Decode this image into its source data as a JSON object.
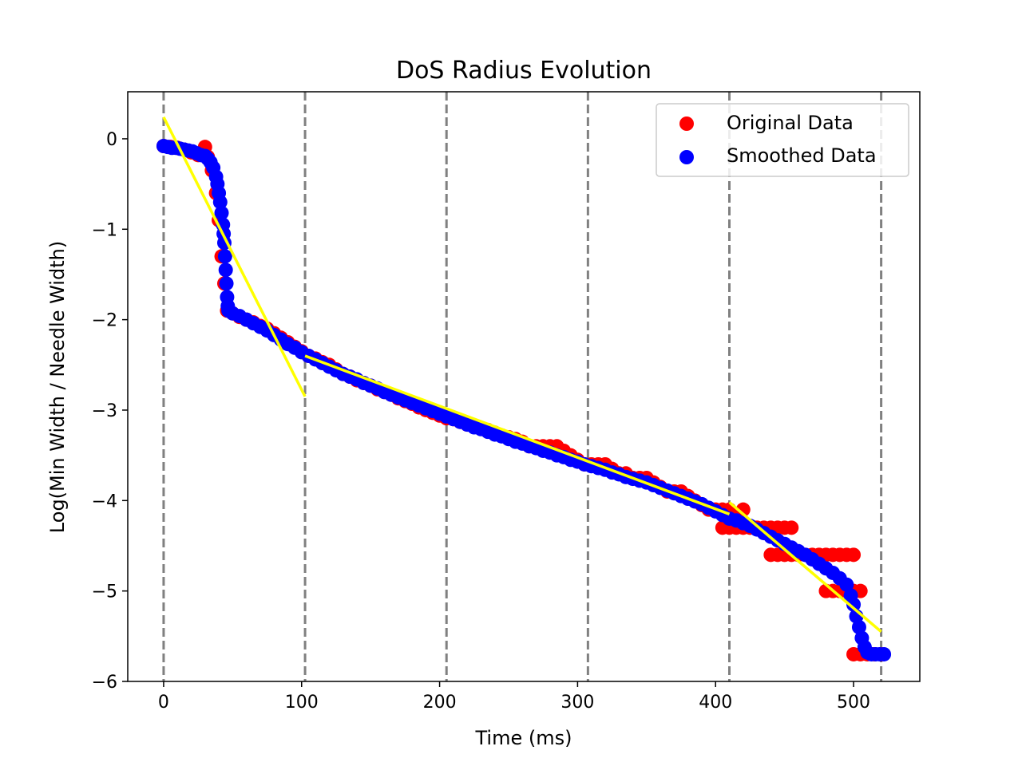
{
  "chart_data": {
    "type": "scatter",
    "title": "DoS Radius Evolution",
    "xlabel": "Time (ms)",
    "ylabel": "Log(Min Width / Needle Width)",
    "xlim": [
      -26,
      548
    ],
    "ylim": [
      -6,
      0.52
    ],
    "xticks": [
      0,
      100,
      200,
      300,
      400,
      500
    ],
    "yticks": [
      0,
      -1,
      -2,
      -3,
      -4,
      -5,
      -6
    ],
    "xtick_labels": [
      "0",
      "100",
      "200",
      "300",
      "400",
      "500"
    ],
    "ytick_labels": [
      "0",
      "−1",
      "−2",
      "−3",
      "−4",
      "−5",
      "−6"
    ],
    "grid": false,
    "legend_position": "top-right",
    "vlines": [
      0,
      102.5,
      205,
      307.5,
      410,
      520
    ],
    "vline_color": "#808080",
    "series": [
      {
        "name": "Original Data",
        "color": "#ff0000",
        "points": [
          [
            0,
            -0.08
          ],
          [
            5,
            -0.09
          ],
          [
            10,
            -0.1
          ],
          [
            15,
            -0.12
          ],
          [
            20,
            -0.15
          ],
          [
            25,
            -0.18
          ],
          [
            30,
            -0.09
          ],
          [
            32,
            -0.2
          ],
          [
            35,
            -0.35
          ],
          [
            38,
            -0.6
          ],
          [
            40,
            -0.9
          ],
          [
            42,
            -1.3
          ],
          [
            44,
            -1.6
          ],
          [
            46,
            -1.9
          ],
          [
            50,
            -1.93
          ],
          [
            55,
            -1.97
          ],
          [
            60,
            -2.0
          ],
          [
            65,
            -2.03
          ],
          [
            70,
            -2.07
          ],
          [
            75,
            -2.1
          ],
          [
            80,
            -2.15
          ],
          [
            85,
            -2.2
          ],
          [
            90,
            -2.25
          ],
          [
            95,
            -2.3
          ],
          [
            100,
            -2.35
          ],
          [
            105,
            -2.4
          ],
          [
            110,
            -2.43
          ],
          [
            115,
            -2.47
          ],
          [
            120,
            -2.5
          ],
          [
            125,
            -2.55
          ],
          [
            130,
            -2.6
          ],
          [
            135,
            -2.63
          ],
          [
            140,
            -2.67
          ],
          [
            145,
            -2.7
          ],
          [
            150,
            -2.73
          ],
          [
            155,
            -2.77
          ],
          [
            160,
            -2.8
          ],
          [
            165,
            -2.83
          ],
          [
            170,
            -2.87
          ],
          [
            175,
            -2.9
          ],
          [
            180,
            -2.93
          ],
          [
            185,
            -2.97
          ],
          [
            190,
            -3.0
          ],
          [
            195,
            -3.03
          ],
          [
            200,
            -3.06
          ],
          [
            205,
            -3.09
          ],
          [
            210,
            -3.1
          ],
          [
            215,
            -3.13
          ],
          [
            220,
            -3.16
          ],
          [
            225,
            -3.18
          ],
          [
            230,
            -3.2
          ],
          [
            235,
            -3.22
          ],
          [
            240,
            -3.25
          ],
          [
            245,
            -3.28
          ],
          [
            250,
            -3.3
          ],
          [
            255,
            -3.32
          ],
          [
            260,
            -3.35
          ],
          [
            265,
            -3.4
          ],
          [
            270,
            -3.4
          ],
          [
            275,
            -3.4
          ],
          [
            280,
            -3.4
          ],
          [
            285,
            -3.4
          ],
          [
            290,
            -3.45
          ],
          [
            295,
            -3.5
          ],
          [
            300,
            -3.55
          ],
          [
            305,
            -3.6
          ],
          [
            310,
            -3.6
          ],
          [
            315,
            -3.6
          ],
          [
            320,
            -3.6
          ],
          [
            325,
            -3.65
          ],
          [
            330,
            -3.7
          ],
          [
            335,
            -3.7
          ],
          [
            340,
            -3.75
          ],
          [
            345,
            -3.75
          ],
          [
            350,
            -3.75
          ],
          [
            355,
            -3.8
          ],
          [
            360,
            -3.85
          ],
          [
            365,
            -3.9
          ],
          [
            370,
            -3.9
          ],
          [
            375,
            -3.9
          ],
          [
            380,
            -3.95
          ],
          [
            385,
            -4.0
          ],
          [
            390,
            -4.05
          ],
          [
            395,
            -4.1
          ],
          [
            400,
            -4.1
          ],
          [
            405,
            -4.1
          ],
          [
            410,
            -4.1
          ],
          [
            415,
            -4.15
          ],
          [
            420,
            -4.1
          ],
          [
            405,
            -4.3
          ],
          [
            410,
            -4.3
          ],
          [
            415,
            -4.3
          ],
          [
            420,
            -4.3
          ],
          [
            425,
            -4.3
          ],
          [
            430,
            -4.3
          ],
          [
            435,
            -4.3
          ],
          [
            440,
            -4.3
          ],
          [
            445,
            -4.3
          ],
          [
            450,
            -4.3
          ],
          [
            455,
            -4.3
          ],
          [
            440,
            -4.6
          ],
          [
            445,
            -4.6
          ],
          [
            450,
            -4.6
          ],
          [
            455,
            -4.6
          ],
          [
            460,
            -4.6
          ],
          [
            465,
            -4.6
          ],
          [
            470,
            -4.6
          ],
          [
            475,
            -4.6
          ],
          [
            480,
            -4.6
          ],
          [
            485,
            -4.6
          ],
          [
            490,
            -4.6
          ],
          [
            495,
            -4.6
          ],
          [
            500,
            -4.6
          ],
          [
            480,
            -5.0
          ],
          [
            485,
            -5.0
          ],
          [
            490,
            -5.0
          ],
          [
            495,
            -5.0
          ],
          [
            500,
            -5.0
          ],
          [
            505,
            -5.0
          ],
          [
            500,
            -5.7
          ],
          [
            505,
            -5.7
          ],
          [
            510,
            -5.7
          ],
          [
            515,
            -5.7
          ],
          [
            520,
            -5.7
          ]
        ]
      },
      {
        "name": "Smoothed Data",
        "color": "#0000ff",
        "points": [
          [
            0,
            -0.08
          ],
          [
            3,
            -0.09
          ],
          [
            6,
            -0.1
          ],
          [
            9,
            -0.1
          ],
          [
            12,
            -0.11
          ],
          [
            15,
            -0.12
          ],
          [
            18,
            -0.13
          ],
          [
            21,
            -0.14
          ],
          [
            24,
            -0.16
          ],
          [
            27,
            -0.18
          ],
          [
            30,
            -0.19
          ],
          [
            32,
            -0.22
          ],
          [
            34,
            -0.26
          ],
          [
            36,
            -0.32
          ],
          [
            38,
            -0.42
          ],
          [
            39,
            -0.5
          ],
          [
            40,
            -0.6
          ],
          [
            41,
            -0.7
          ],
          [
            42,
            -0.82
          ],
          [
            43,
            -0.95
          ],
          [
            43.5,
            -1.05
          ],
          [
            44,
            -1.15
          ],
          [
            44.5,
            -1.3
          ],
          [
            45,
            -1.45
          ],
          [
            45.5,
            -1.6
          ],
          [
            46,
            -1.75
          ],
          [
            46.5,
            -1.85
          ],
          [
            47,
            -1.9
          ],
          [
            50,
            -1.93
          ],
          [
            55,
            -1.96
          ],
          [
            60,
            -2.0
          ],
          [
            65,
            -2.04
          ],
          [
            70,
            -2.08
          ],
          [
            75,
            -2.12
          ],
          [
            80,
            -2.17
          ],
          [
            85,
            -2.22
          ],
          [
            90,
            -2.27
          ],
          [
            95,
            -2.31
          ],
          [
            100,
            -2.36
          ],
          [
            105,
            -2.4
          ],
          [
            110,
            -2.44
          ],
          [
            115,
            -2.48
          ],
          [
            120,
            -2.52
          ],
          [
            125,
            -2.56
          ],
          [
            130,
            -2.6
          ],
          [
            135,
            -2.63
          ],
          [
            140,
            -2.66
          ],
          [
            145,
            -2.7
          ],
          [
            150,
            -2.73
          ],
          [
            155,
            -2.76
          ],
          [
            160,
            -2.8
          ],
          [
            165,
            -2.83
          ],
          [
            170,
            -2.86
          ],
          [
            175,
            -2.89
          ],
          [
            180,
            -2.92
          ],
          [
            185,
            -2.95
          ],
          [
            190,
            -2.98
          ],
          [
            195,
            -3.01
          ],
          [
            200,
            -3.04
          ],
          [
            205,
            -3.07
          ],
          [
            210,
            -3.1
          ],
          [
            215,
            -3.13
          ],
          [
            220,
            -3.16
          ],
          [
            225,
            -3.19
          ],
          [
            230,
            -3.21
          ],
          [
            235,
            -3.24
          ],
          [
            240,
            -3.27
          ],
          [
            245,
            -3.29
          ],
          [
            250,
            -3.32
          ],
          [
            255,
            -3.35
          ],
          [
            260,
            -3.37
          ],
          [
            265,
            -3.4
          ],
          [
            270,
            -3.42
          ],
          [
            275,
            -3.45
          ],
          [
            280,
            -3.47
          ],
          [
            285,
            -3.5
          ],
          [
            290,
            -3.52
          ],
          [
            295,
            -3.55
          ],
          [
            300,
            -3.57
          ],
          [
            305,
            -3.6
          ],
          [
            310,
            -3.62
          ],
          [
            315,
            -3.64
          ],
          [
            320,
            -3.66
          ],
          [
            325,
            -3.69
          ],
          [
            330,
            -3.71
          ],
          [
            335,
            -3.74
          ],
          [
            340,
            -3.76
          ],
          [
            345,
            -3.78
          ],
          [
            350,
            -3.8
          ],
          [
            355,
            -3.83
          ],
          [
            360,
            -3.86
          ],
          [
            365,
            -3.89
          ],
          [
            370,
            -3.92
          ],
          [
            375,
            -3.95
          ],
          [
            380,
            -3.98
          ],
          [
            385,
            -4.01
          ],
          [
            390,
            -4.04
          ],
          [
            395,
            -4.08
          ],
          [
            400,
            -4.12
          ],
          [
            405,
            -4.16
          ],
          [
            410,
            -4.2
          ],
          [
            415,
            -4.22
          ],
          [
            420,
            -4.25
          ],
          [
            425,
            -4.28
          ],
          [
            430,
            -4.32
          ],
          [
            435,
            -4.36
          ],
          [
            440,
            -4.4
          ],
          [
            445,
            -4.44
          ],
          [
            450,
            -4.48
          ],
          [
            455,
            -4.52
          ],
          [
            460,
            -4.56
          ],
          [
            465,
            -4.6
          ],
          [
            470,
            -4.65
          ],
          [
            475,
            -4.7
          ],
          [
            480,
            -4.75
          ],
          [
            485,
            -4.8
          ],
          [
            490,
            -4.86
          ],
          [
            495,
            -4.93
          ],
          [
            498,
            -5.05
          ],
          [
            500,
            -5.15
          ],
          [
            502,
            -5.28
          ],
          [
            504,
            -5.4
          ],
          [
            506,
            -5.52
          ],
          [
            508,
            -5.62
          ],
          [
            510,
            -5.68
          ],
          [
            513,
            -5.7
          ],
          [
            516,
            -5.7
          ],
          [
            519,
            -5.7
          ],
          [
            522,
            -5.7
          ]
        ]
      }
    ],
    "fit_lines": [
      {
        "color": "#ffff00",
        "x": [
          0,
          102.5
        ],
        "y": [
          0.24,
          -2.85
        ]
      },
      {
        "color": "#ffff00",
        "x": [
          102.5,
          410
        ],
        "y": [
          -2.4,
          -4.15
        ]
      },
      {
        "color": "#ffff00",
        "x": [
          410,
          520
        ],
        "y": [
          -4.02,
          -5.45
        ]
      }
    ]
  }
}
